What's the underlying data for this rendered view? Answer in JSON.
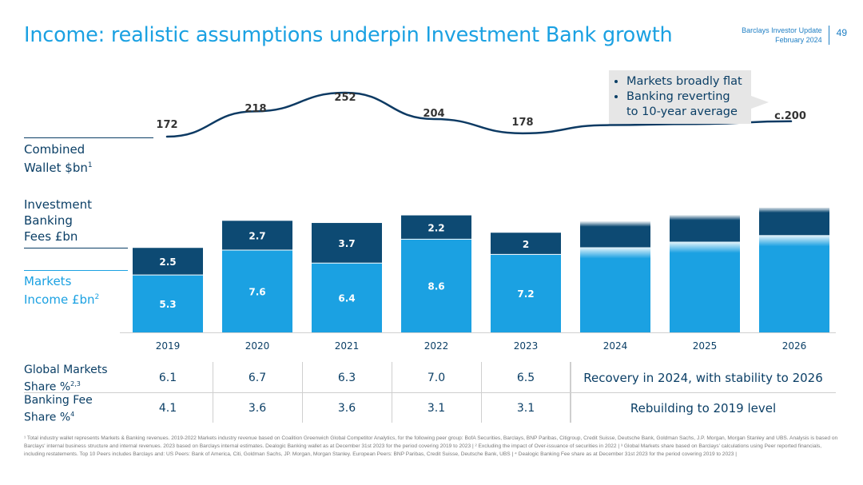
{
  "header": {
    "title": "Income: realistic assumptions underpin Investment Bank growth",
    "doc_name": "Barclays Investor Update",
    "doc_date": "February 2024",
    "page_number": "49"
  },
  "row_labels": {
    "wallet_line1": "Combined",
    "wallet_line2": "Wallet $bn",
    "wallet_sup": "1",
    "fees_line1": "Investment",
    "fees_line2": "Banking",
    "fees_line3": "Fees £bn",
    "markets_line1": "Markets",
    "markets_line2": "Income £bn",
    "markets_sup": "2"
  },
  "callout": {
    "bullet1": "Markets broadly flat",
    "bullet2_line1": "Banking reverting",
    "bullet2_line2": "to 10-year average"
  },
  "chart_data": {
    "type": "bar",
    "stacked": true,
    "categories": [
      "2019",
      "2020",
      "2021",
      "2022",
      "2023",
      "2024",
      "2025",
      "2026"
    ],
    "series": [
      {
        "name": "Markets Income £bn",
        "values": [
          5.3,
          7.6,
          6.4,
          8.6,
          7.2,
          null,
          null,
          null
        ],
        "color": "#1ba1e2"
      },
      {
        "name": "Investment Banking Fees £bn",
        "values": [
          2.5,
          2.7,
          3.7,
          2.2,
          2.0,
          null,
          null,
          null
        ],
        "color": "#0d4a73"
      }
    ],
    "projection_totals": [
      10.2,
      10.8,
      11.5
    ],
    "projection_split": [
      0.77,
      0.775,
      0.78
    ],
    "wallet": {
      "name": "Combined Wallet $bn",
      "labels": [
        "172",
        "218",
        "252",
        "204",
        "178",
        "c.200"
      ],
      "values": [
        172,
        218,
        252,
        204,
        178,
        200
      ]
    },
    "colors": {
      "markets": "#1ba1e2",
      "fees": "#0d4a73",
      "line": "#0d3a63"
    }
  },
  "table": {
    "gm_line1": "Global Markets",
    "gm_line2": "Share %",
    "gm_sup": "2,3",
    "bf_line1": "Banking Fee",
    "bf_line2": "Share %",
    "bf_sup": "4",
    "global_markets_share": [
      "6.1",
      "6.7",
      "6.3",
      "7.0",
      "6.5"
    ],
    "banking_fee_share": [
      "4.1",
      "3.6",
      "3.6",
      "3.1",
      "3.1"
    ],
    "gm_projection": "Recovery in 2024, with stability to 2026",
    "bf_projection": "Rebuilding to 2019 level"
  },
  "footnote": "¹ Total industry wallet represents Markets & Banking revenues. 2019-2022 Markets industry revenue based on Coalition Greenwich Global Competitor Analytics, for the following peer group: BofA Securities, Barclays, BNP Paribas, Citigroup, Credit Suisse, Deutsche Bank, Goldman Sachs, J.P. Morgan, Morgan Stanley and UBS. Analysis is based on Barclays' internal business structure and internal revenues. 2023 based on Barclays internal estimates. Dealogic Banking wallet as at December 31st 2023 for the period covering 2019 to 2023 | ² Excluding the impact of Over-issuance of securities in 2022 | ³ Global Markets share based on Barclays' calculations using Peer reported financials, including restatements. Top 10 Peers includes Barclays and: US Peers: Bank of America, Citi, Goldman Sachs, JP. Morgan, Morgan Stanley. European Peers: BNP Paribas, Credit Suisse, Deutsche Bank, UBS | ⁴ Dealogic Banking Fee share as at December 31st 2023 for the period covering 2019 to 2023 |"
}
